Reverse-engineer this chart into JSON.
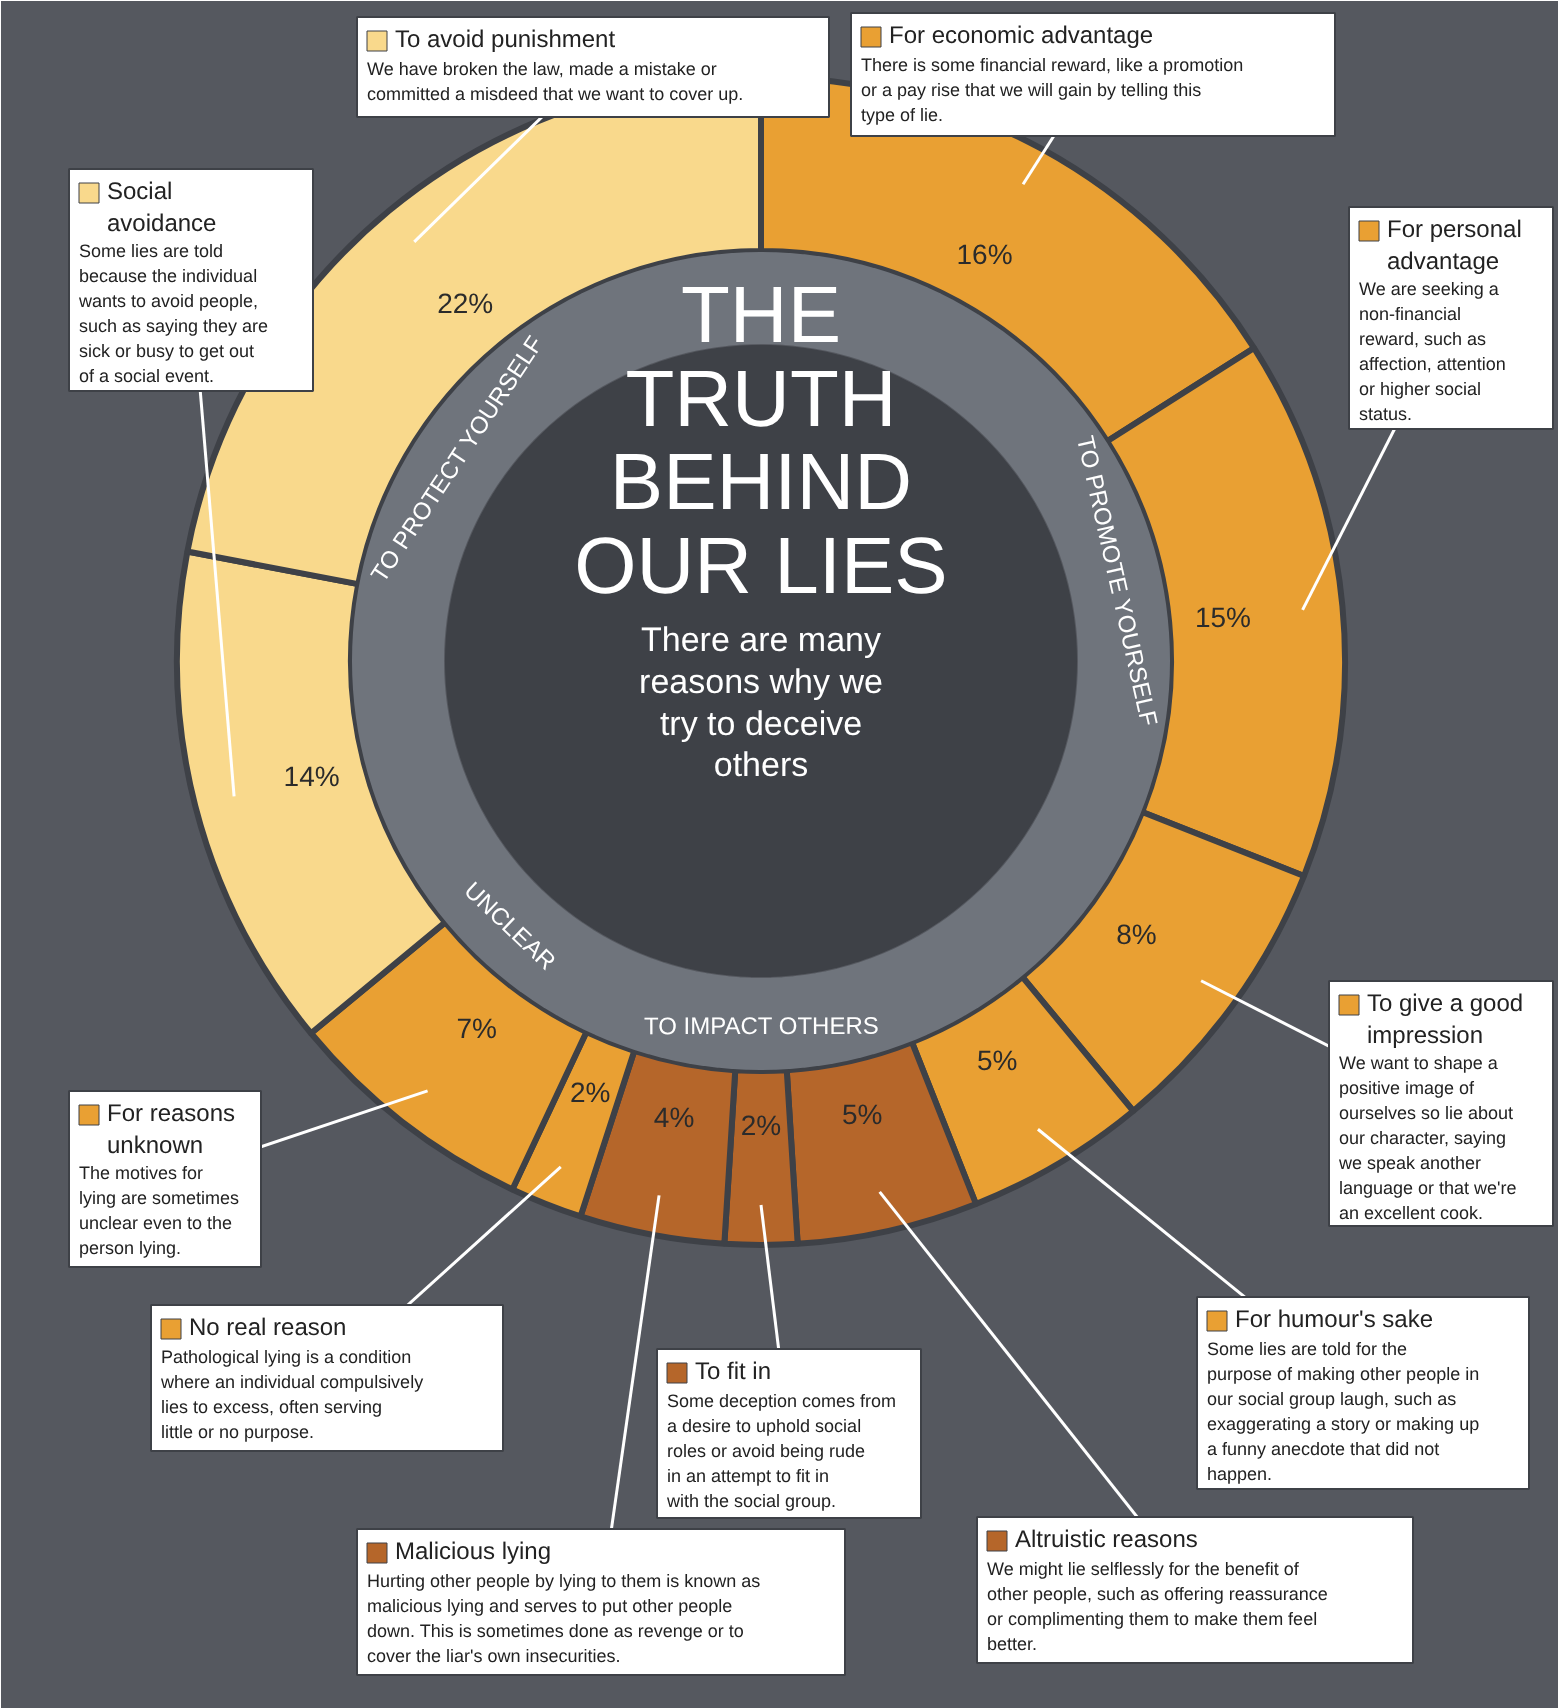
{
  "chart_data": {
    "type": "donut",
    "title": "THE TRUTH BEHIND OUR LIES",
    "subtitle": "There are many reasons why we try to deceive others",
    "categories": [
      "For economic advantage",
      "For personal advantage",
      "To give a good impression",
      "For humour's sake",
      "Altruistic reasons",
      "To fit in",
      "Malicious lying",
      "No real reason",
      "For reasons unknown",
      "Social avoidance",
      "To avoid punishment"
    ],
    "values": [
      16,
      15,
      8,
      5,
      5,
      2,
      4,
      2,
      7,
      14,
      22
    ],
    "value_labels": [
      "16%",
      "15%",
      "8%",
      "5%",
      "5%",
      "2%",
      "4%",
      "2%",
      "7%",
      "14%",
      "22%"
    ],
    "colors": [
      "#e9a033",
      "#e9a033",
      "#e9a033",
      "#e9a033",
      "#b5662a",
      "#b5662a",
      "#b5662a",
      "#e9a033",
      "#e9a033",
      "#f9d98c",
      "#f9d98c"
    ],
    "legend": "right",
    "annotations": [
      "TO PROMOTE YOURSELF",
      "TO IMPACT OTHERS",
      "UNCLEAR",
      "TO PROTECT YOURSELF",
      {
        "text": "There is some financial reward, like a promotion or a pay rise that we will gain by telling this type of lie.",
        "x": "For economic advantage"
      },
      {
        "text": "We are seeking a non-financial reward, such as affection, attention or higher social status.",
        "x": "For personal advantage"
      },
      {
        "text": "We want to shape a positive image of ourselves so lie about our character, saying we speak another language or that we're an excellent cook.",
        "x": "To give a good impression"
      },
      {
        "text": "Some lies are told for the purpose of making other people in our social group laugh, such as exaggerating a story or making up a funny anecdote that did not happen.",
        "x": "For humour's sake"
      },
      {
        "text": "We might lie selflessly for the benefit of other people, such as offering reassurance or complimenting them to make them feel better.",
        "x": "Altruistic reasons"
      },
      {
        "text": "Some deception comes from a desire to uphold social roles or avoid being rude in an attempt to fit in with the social group.",
        "x": "To fit in"
      },
      {
        "text": "Hurting other people by lying to them is known as malicious lying and serves to put other people down. This is sometimes done as revenge or to cover the liar's own insecurities.",
        "x": "Malicious lying"
      },
      {
        "text": "Pathological lying is a condition where an individual compulsively lies to excess, often serving little or no purpose.",
        "x": "No real reason"
      },
      {
        "text": "The motives for lying are sometimes unclear even to the person lying.",
        "x": "For reasons unknown"
      },
      {
        "text": "Some lies are told because the individual wants to avoid people, such as saying they are sick or busy to get out of a social event.",
        "x": "Social avoidance"
      },
      {
        "text": "We have broken the law, made a mistake or committed a misdeed that we want to cover up.",
        "x": "To avoid punishment"
      }
    ]
  }
}
